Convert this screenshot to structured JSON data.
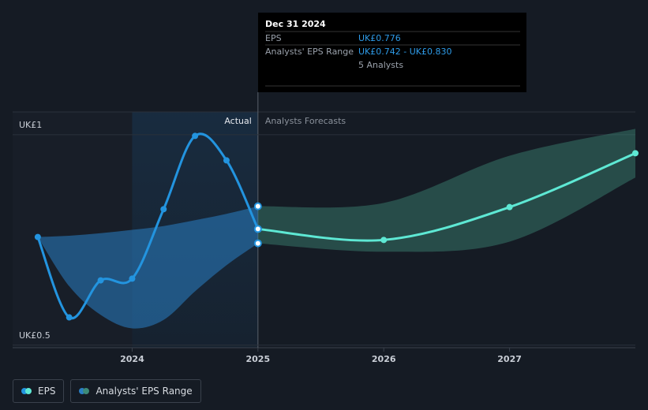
{
  "chart_data": {
    "type": "line",
    "xlim": [
      2023.05,
      2028.0
    ],
    "xticks": [
      2024,
      2025,
      2026,
      2027
    ],
    "ylim": [
      0.494,
      1.054
    ],
    "yticks": [
      {
        "value": 1,
        "label": "UK£1"
      },
      {
        "value": 0.5,
        "label": "UK£0.5"
      }
    ],
    "grid": true,
    "forecast_start": 2025,
    "actual_label": "Actual",
    "forecast_label": "Analysts Forecasts",
    "series": [
      {
        "name": "EPS",
        "color": "#2394df",
        "x": [
          2023.25,
          2023.5,
          2023.75,
          2024.0,
          2024.25,
          2024.5,
          2024.75,
          2025.0
        ],
        "values": [
          0.757,
          0.566,
          0.654,
          0.658,
          0.823,
          0.997,
          0.939,
          0.776
        ]
      },
      {
        "color": "#5ee8d4",
        "x": [
          2025.0,
          2026.0,
          2027.0,
          2028.0
        ],
        "values": [
          0.776,
          0.75,
          0.828,
          0.956
        ]
      }
    ],
    "bands": [
      {
        "name": "Analysts' EPS Range",
        "color": "#2a7fc4",
        "x": [
          2023.25,
          2023.5,
          2023.75,
          2024.0,
          2024.25,
          2024.5,
          2024.75,
          2025.0
        ],
        "low": [
          0.757,
          0.64,
          0.572,
          0.54,
          0.56,
          0.628,
          0.69,
          0.742
        ],
        "high": [
          0.757,
          0.76,
          0.766,
          0.774,
          0.783,
          0.797,
          0.812,
          0.83
        ]
      },
      {
        "color": "#3d8a78",
        "x": [
          2025.0,
          2026.0,
          2027.0,
          2028.0
        ],
        "low": [
          0.742,
          0.722,
          0.746,
          0.898
        ],
        "high": [
          0.83,
          0.838,
          0.95,
          1.014
        ]
      }
    ],
    "tooltip": {
      "date": "Dec 31 2024",
      "rows": [
        {
          "label": "EPS",
          "value": "UK£0.776"
        },
        {
          "label": "Analysts' EPS Range",
          "value": "UK£0.742 - UK£0.830"
        }
      ],
      "analysts": "5 Analysts"
    }
  }
}
